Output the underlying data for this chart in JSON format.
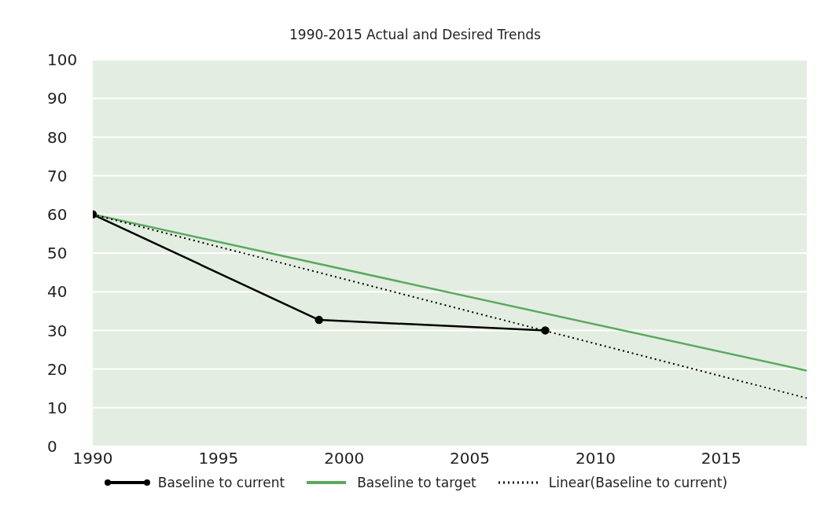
{
  "chart_data": {
    "type": "line",
    "title": "1990-2015 Actual and Desired Trends",
    "xlim": [
      1990,
      2018.4
    ],
    "xticks": [
      1990,
      1995,
      2000,
      2005,
      2010,
      2015
    ],
    "ylim": [
      0,
      100
    ],
    "yticks": [
      0,
      10,
      20,
      30,
      40,
      50,
      60,
      70,
      80,
      90,
      100
    ],
    "grid": "y",
    "legend": "bottom",
    "series": [
      {
        "name": "Baseline to current",
        "color": "#000000",
        "x": [
          1990,
          1999,
          2008
        ],
        "values": [
          60,
          32.7,
          30
        ],
        "marker": "circle",
        "line_style": "solid"
      },
      {
        "name": "Baseline to target",
        "color": "#5aa95f",
        "x": [
          1990,
          2018.4
        ],
        "values": [
          60,
          19.6
        ],
        "marker": "none",
        "line_style": "solid"
      },
      {
        "name": "Linear(Baseline to current)",
        "color": "#000000",
        "x": [
          1990,
          2018.4
        ],
        "values": [
          60,
          12.5
        ],
        "marker": "none",
        "line_style": "dotted"
      }
    ]
  }
}
